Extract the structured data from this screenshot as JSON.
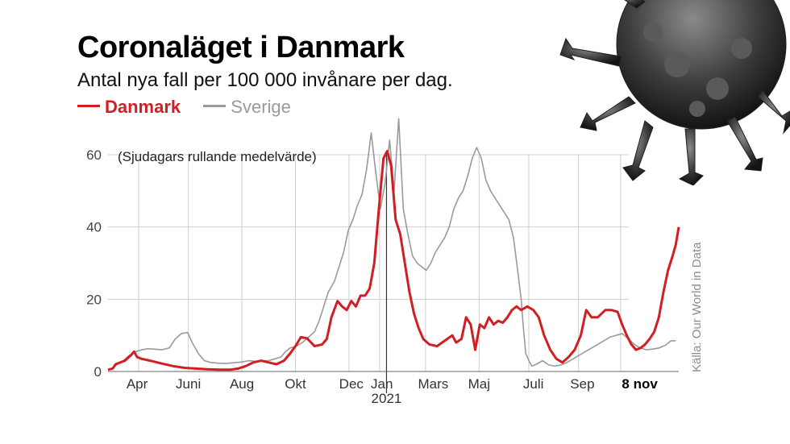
{
  "title": "Coronaläget i Danmark",
  "subtitle": "Antal nya fall per 100 000 invånare per dag.",
  "note": "(Sjudagars rullande medelvärde)",
  "source": "Källa: Our World in Data",
  "legend": {
    "denmark": "Danmark",
    "sweden": "Sverige"
  },
  "colors": {
    "denmark": "#d21e22",
    "sweden": "#9a9a9a",
    "grid": "#cfcfcf"
  },
  "chart_data": {
    "type": "line",
    "ylim": [
      0,
      60
    ],
    "yticks": [
      "0",
      "20",
      "40",
      "60"
    ],
    "x_unit": "weeks since first tick",
    "xticks": [
      "Apr",
      "Juni",
      "Aug",
      "Okt",
      "Dec",
      "Jan",
      "Mars",
      "Maj",
      "Juli",
      "Sep",
      "8 nov"
    ],
    "year_label": "2021",
    "series": [
      {
        "name": "Danmark",
        "points": [
          [
            0,
            0.5
          ],
          [
            0.6,
            0.8
          ],
          [
            1,
            2
          ],
          [
            1.6,
            2.5
          ],
          [
            2.2,
            3
          ],
          [
            3,
            4.5
          ],
          [
            3.4,
            5.5
          ],
          [
            3.8,
            4
          ],
          [
            4.4,
            3.5
          ],
          [
            5.5,
            3
          ],
          [
            7,
            2.2
          ],
          [
            8.5,
            1.5
          ],
          [
            10,
            1
          ],
          [
            11.5,
            0.8
          ],
          [
            13,
            0.6
          ],
          [
            14.5,
            0.5
          ],
          [
            16,
            0.5
          ],
          [
            17,
            0.8
          ],
          [
            18,
            1.5
          ],
          [
            19,
            2.5
          ],
          [
            20,
            3
          ],
          [
            21,
            2.5
          ],
          [
            22,
            2
          ],
          [
            23,
            3
          ],
          [
            23.8,
            5
          ],
          [
            24.5,
            7
          ],
          [
            25.2,
            9.5
          ],
          [
            26,
            9.2
          ],
          [
            27,
            7
          ],
          [
            28,
            7.5
          ],
          [
            28.6,
            9
          ],
          [
            29.2,
            15
          ],
          [
            30,
            19.5
          ],
          [
            30.6,
            18
          ],
          [
            31.2,
            17
          ],
          [
            31.8,
            19.5
          ],
          [
            32.4,
            18
          ],
          [
            33,
            21
          ],
          [
            33.6,
            21
          ],
          [
            34.2,
            23
          ],
          [
            34.8,
            30
          ],
          [
            35.4,
            45
          ],
          [
            36,
            59
          ],
          [
            36.5,
            61
          ],
          [
            37,
            57
          ],
          [
            37.6,
            42
          ],
          [
            38.2,
            38
          ],
          [
            38.8,
            30
          ],
          [
            39.4,
            22
          ],
          [
            40,
            16
          ],
          [
            40.6,
            12
          ],
          [
            41.2,
            9
          ],
          [
            42,
            7.5
          ],
          [
            43,
            7
          ],
          [
            44,
            8.5
          ],
          [
            45,
            10
          ],
          [
            45.5,
            8
          ],
          [
            46.2,
            9
          ],
          [
            46.8,
            15
          ],
          [
            47.4,
            13
          ],
          [
            48,
            6
          ],
          [
            48.6,
            13
          ],
          [
            49.2,
            12
          ],
          [
            49.8,
            15
          ],
          [
            50.4,
            13
          ],
          [
            51,
            14
          ],
          [
            51.6,
            13.5
          ],
          [
            52.2,
            15
          ],
          [
            52.8,
            17
          ],
          [
            53.4,
            18
          ],
          [
            54,
            17
          ],
          [
            54.8,
            18
          ],
          [
            55.6,
            17
          ],
          [
            56.3,
            15
          ],
          [
            57,
            10
          ],
          [
            57.8,
            6
          ],
          [
            58.6,
            3.5
          ],
          [
            59.4,
            2.5
          ],
          [
            60.2,
            4
          ],
          [
            61,
            6
          ],
          [
            61.8,
            10
          ],
          [
            62.5,
            17
          ],
          [
            63.2,
            15
          ],
          [
            64,
            15
          ],
          [
            65,
            17
          ],
          [
            65.8,
            17
          ],
          [
            66.6,
            16.5
          ],
          [
            67.2,
            13
          ],
          [
            67.8,
            10
          ],
          [
            68.4,
            7.5
          ],
          [
            69,
            6
          ],
          [
            69.6,
            6.5
          ],
          [
            70.2,
            7.5
          ],
          [
            70.8,
            9
          ],
          [
            71.4,
            11
          ],
          [
            72,
            15
          ],
          [
            72.6,
            22
          ],
          [
            73.2,
            28
          ],
          [
            73.8,
            32
          ],
          [
            74.2,
            35
          ],
          [
            74.6,
            40
          ]
        ]
      },
      {
        "name": "Sverige",
        "points": [
          [
            0,
            0.5
          ],
          [
            0.6,
            1
          ],
          [
            1.2,
            2
          ],
          [
            2,
            3
          ],
          [
            2.8,
            4.5
          ],
          [
            3.6,
            5.5
          ],
          [
            4.4,
            6
          ],
          [
            5.2,
            6.3
          ],
          [
            6,
            6.2
          ],
          [
            7,
            6
          ],
          [
            8,
            6.5
          ],
          [
            8.8,
            9
          ],
          [
            9.6,
            10.5
          ],
          [
            10.4,
            10.8
          ],
          [
            11,
            8
          ],
          [
            11.8,
            5
          ],
          [
            12.6,
            3
          ],
          [
            13.4,
            2.5
          ],
          [
            14.4,
            2.3
          ],
          [
            15.4,
            2.2
          ],
          [
            16.4,
            2.4
          ],
          [
            17.4,
            2.6
          ],
          [
            18.4,
            3
          ],
          [
            19.4,
            2.8
          ],
          [
            20.2,
            3
          ],
          [
            21,
            3
          ],
          [
            21.8,
            3.5
          ],
          [
            22.6,
            4
          ],
          [
            23.2,
            5.5
          ],
          [
            23.8,
            6.5
          ],
          [
            24.6,
            7
          ],
          [
            25.4,
            8
          ],
          [
            26.2,
            9.5
          ],
          [
            27,
            11
          ],
          [
            27.6,
            14
          ],
          [
            28.2,
            18
          ],
          [
            28.8,
            22
          ],
          [
            29.6,
            25
          ],
          [
            30.2,
            29
          ],
          [
            30.8,
            33
          ],
          [
            31.4,
            39
          ],
          [
            32,
            42
          ],
          [
            32.6,
            46
          ],
          [
            33.2,
            49
          ],
          [
            33.8,
            56
          ],
          [
            34.4,
            66
          ],
          [
            35,
            55
          ],
          [
            35.6,
            45
          ],
          [
            36.2,
            52
          ],
          [
            36.8,
            64
          ],
          [
            37.4,
            50
          ],
          [
            38,
            70
          ],
          [
            38.6,
            45
          ],
          [
            39.2,
            38
          ],
          [
            39.8,
            32
          ],
          [
            40.4,
            30
          ],
          [
            41,
            29
          ],
          [
            41.6,
            28
          ],
          [
            42.2,
            30
          ],
          [
            42.8,
            33
          ],
          [
            43.4,
            35
          ],
          [
            44,
            37
          ],
          [
            44.6,
            40
          ],
          [
            45.2,
            45
          ],
          [
            45.8,
            48
          ],
          [
            46.4,
            50
          ],
          [
            47,
            54
          ],
          [
            47.6,
            59
          ],
          [
            48.2,
            62
          ],
          [
            48.8,
            59
          ],
          [
            49.4,
            53
          ],
          [
            50,
            50
          ],
          [
            50.6,
            48
          ],
          [
            51.2,
            46
          ],
          [
            51.8,
            44
          ],
          [
            52.4,
            42
          ],
          [
            53,
            37
          ],
          [
            53.6,
            27
          ],
          [
            54,
            20
          ],
          [
            54.3,
            12
          ],
          [
            54.6,
            5
          ],
          [
            55,
            3
          ],
          [
            55.4,
            1.5
          ],
          [
            56,
            2
          ],
          [
            56.8,
            3
          ],
          [
            57.6,
            1.8
          ],
          [
            58.4,
            1.5
          ],
          [
            59.2,
            1.8
          ],
          [
            60,
            2.5
          ],
          [
            60.8,
            3.5
          ],
          [
            61.6,
            4.5
          ],
          [
            62.4,
            5.5
          ],
          [
            63.2,
            6.5
          ],
          [
            64,
            7.5
          ],
          [
            64.8,
            8.5
          ],
          [
            65.6,
            9.5
          ],
          [
            66.4,
            10
          ],
          [
            67.2,
            10.5
          ],
          [
            68,
            9
          ],
          [
            68.8,
            7.5
          ],
          [
            69.6,
            6.5
          ],
          [
            70.4,
            6
          ],
          [
            71.2,
            6.2
          ],
          [
            72,
            6.5
          ],
          [
            72.8,
            7.2
          ],
          [
            73.6,
            8.5
          ],
          [
            74.2,
            8.5
          ]
        ]
      }
    ]
  }
}
